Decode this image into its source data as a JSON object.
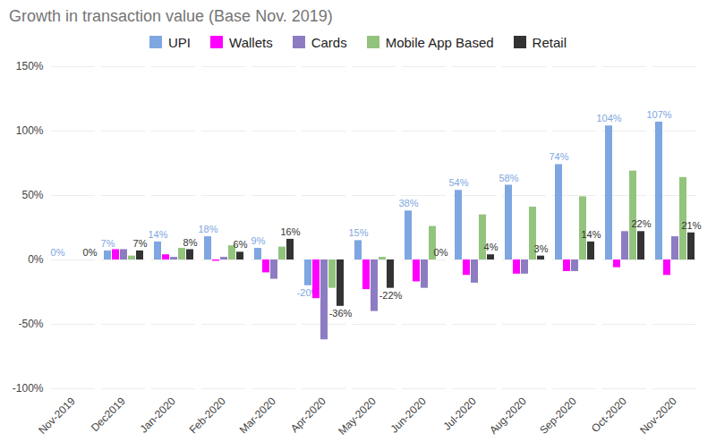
{
  "chart_data": {
    "type": "bar",
    "title": "Growth in transaction value (Base Nov. 2019)",
    "categories": [
      "Nov-2019",
      "Dec2019",
      "Jan-2020",
      "Feb-2020",
      "Mar-2020",
      "Apr-2020",
      "May-2020",
      "Jun-2020",
      "Jul-2020",
      "Aug-2020",
      "Sep-2020",
      "Oct-2020",
      "Nov-2020"
    ],
    "series": [
      {
        "name": "UPI",
        "color": "#7ea6e0",
        "values": [
          0,
          7,
          14,
          18,
          9,
          -20,
          15,
          38,
          54,
          58,
          74,
          104,
          107
        ],
        "value_labels": [
          "0%",
          "7%",
          "14%",
          "18%",
          "9%",
          "-20%",
          "15%",
          "38%",
          "54%",
          "58%",
          "74%",
          "104%",
          "107%"
        ]
      },
      {
        "name": "Wallets",
        "color": "#ff00ff",
        "values": [
          0,
          8,
          4,
          -1,
          -10,
          -30,
          -23,
          -17,
          -12,
          -11,
          -9,
          -6,
          -12
        ]
      },
      {
        "name": "Cards",
        "color": "#8e7cc3",
        "values": [
          0,
          8,
          2,
          2,
          -15,
          -62,
          -40,
          -22,
          -18,
          -11,
          -9,
          22,
          18
        ]
      },
      {
        "name": "Mobile App Based",
        "color": "#93c47d",
        "values": [
          0,
          3,
          9,
          11,
          10,
          -22,
          2,
          26,
          35,
          41,
          49,
          69,
          64
        ]
      },
      {
        "name": "Retail",
        "color": "#333333",
        "values": [
          0,
          7,
          8,
          6,
          16,
          -36,
          -22,
          0,
          4,
          3,
          14,
          22,
          21
        ],
        "value_labels": [
          "0%",
          "7%",
          "8%",
          "6%",
          "16%",
          "-36%",
          "-22%",
          "0%",
          "4%",
          "3%",
          "14%",
          "22%",
          "21%"
        ]
      }
    ],
    "ylim": [
      -100,
      150
    ],
    "yticks": [
      {
        "value": -100,
        "label": "-100%"
      },
      {
        "value": -50,
        "label": "-50%"
      },
      {
        "value": 0,
        "label": "0%"
      },
      {
        "value": 50,
        "label": "50%"
      },
      {
        "value": 100,
        "label": "100%"
      },
      {
        "value": 150,
        "label": "150%"
      }
    ],
    "grid": true,
    "legend": "top",
    "data_labels": true
  }
}
